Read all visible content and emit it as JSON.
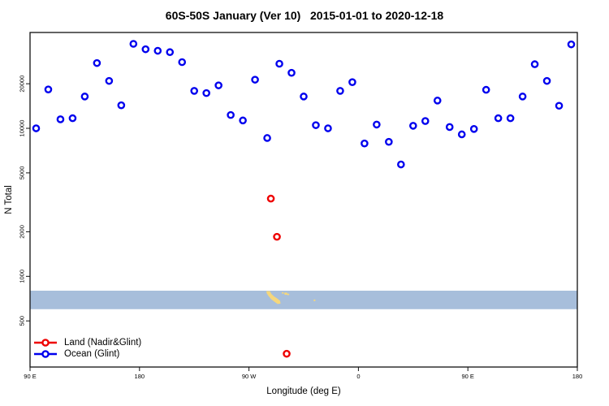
{
  "title": "60S-50S January (Ver 10)   2015-01-01 to 2020-12-18",
  "axes": {
    "y_label": "N Total",
    "x_label": "Longitude (deg E)"
  },
  "legend": {
    "items": [
      {
        "id": "land",
        "label": "Land (Nadir&Glint)",
        "color": "#ee0000"
      },
      {
        "id": "ocean",
        "label": "Ocean (Glint)",
        "color": "#0000ee"
      }
    ]
  },
  "colors": {
    "axis": "#111111",
    "background": "#ffffff",
    "band_ocean": "#a7bedb",
    "band_land": "#f5d77c"
  },
  "chart_data": {
    "type": "scatter",
    "title": "60S-50S January (Ver 10)   2015-01-01 to 2020-12-18",
    "xlabel": "Longitude (deg E)",
    "ylabel": "N Total",
    "x_axis": {
      "range": [
        90,
        540
      ],
      "ticks": [
        90,
        180,
        270,
        360,
        450,
        540
      ],
      "tick_labels": [
        "90 E",
        "180",
        "90 W",
        "0",
        "90 E",
        "180"
      ]
    },
    "y_axis": {
      "scale": "log",
      "range": [
        244,
        44400
      ],
      "ticks": [
        500,
        1000,
        2000,
        5000,
        10000,
        20000
      ],
      "tick_labels": [
        "500",
        "1000",
        "2000",
        "5000",
        "10000",
        "20000"
      ]
    },
    "grid": false,
    "legend_position": "bottom-left",
    "series": [
      {
        "id": "ocean",
        "name": "Ocean (Glint)",
        "color": "#0000ee",
        "marker": "open-circle",
        "points": [
          [
            95,
            10000
          ],
          [
            105,
            18300
          ],
          [
            115,
            11500
          ],
          [
            125,
            11700
          ],
          [
            135,
            16400
          ],
          [
            145,
            27600
          ],
          [
            155,
            20900
          ],
          [
            165,
            14300
          ],
          [
            175,
            37200
          ],
          [
            185,
            34200
          ],
          [
            195,
            33400
          ],
          [
            205,
            32700
          ],
          [
            215,
            28000
          ],
          [
            225,
            17900
          ],
          [
            235,
            17300
          ],
          [
            245,
            19500
          ],
          [
            255,
            12300
          ],
          [
            265,
            11300
          ],
          [
            275,
            21300
          ],
          [
            285,
            8600
          ],
          [
            295,
            27300
          ],
          [
            305,
            23700
          ],
          [
            315,
            16400
          ],
          [
            325,
            10500
          ],
          [
            335,
            10000
          ],
          [
            345,
            17900
          ],
          [
            355,
            20500
          ],
          [
            365,
            7900
          ],
          [
            375,
            10600
          ],
          [
            385,
            8100
          ],
          [
            395,
            5700
          ],
          [
            405,
            10400
          ],
          [
            415,
            11200
          ],
          [
            425,
            15400
          ],
          [
            435,
            10200
          ],
          [
            445,
            9100
          ],
          [
            455,
            9900
          ],
          [
            465,
            18200
          ],
          [
            475,
            11700
          ],
          [
            485,
            11700
          ],
          [
            495,
            16400
          ],
          [
            505,
            27100
          ],
          [
            515,
            20900
          ],
          [
            525,
            14200
          ],
          [
            535,
            36900
          ]
        ]
      },
      {
        "id": "land",
        "name": "Land (Nadir&Glint)",
        "color": "#ee0000",
        "marker": "open-circle",
        "points": [
          [
            288,
            3350
          ],
          [
            293,
            1850
          ],
          [
            301,
            300
          ]
        ]
      }
    ],
    "band": {
      "description": "latitude-strip map 60S-50S",
      "y_range": [
        600,
        800
      ],
      "ocean_color": "#a7bedb",
      "land_color": "#f5d77c",
      "land_polygon": [
        [
          284.3,
          0.02
        ],
        [
          287.2,
          0.02
        ],
        [
          288.5,
          0.18
        ],
        [
          290.5,
          0.3
        ],
        [
          293.2,
          0.42
        ],
        [
          295.6,
          0.55
        ],
        [
          296.0,
          0.7
        ],
        [
          293.6,
          0.72
        ],
        [
          291.0,
          0.6
        ],
        [
          288.3,
          0.46
        ],
        [
          286.0,
          0.28
        ],
        [
          284.6,
          0.14
        ]
      ],
      "islands": [
        [
          297.8,
          0.12,
          1.2,
          1.0
        ],
        [
          300.3,
          0.16,
          2.0,
          1.4
        ],
        [
          302.2,
          0.2,
          1.4,
          1.0
        ],
        [
          323.9,
          0.52,
          1.2,
          1.1
        ]
      ]
    }
  }
}
